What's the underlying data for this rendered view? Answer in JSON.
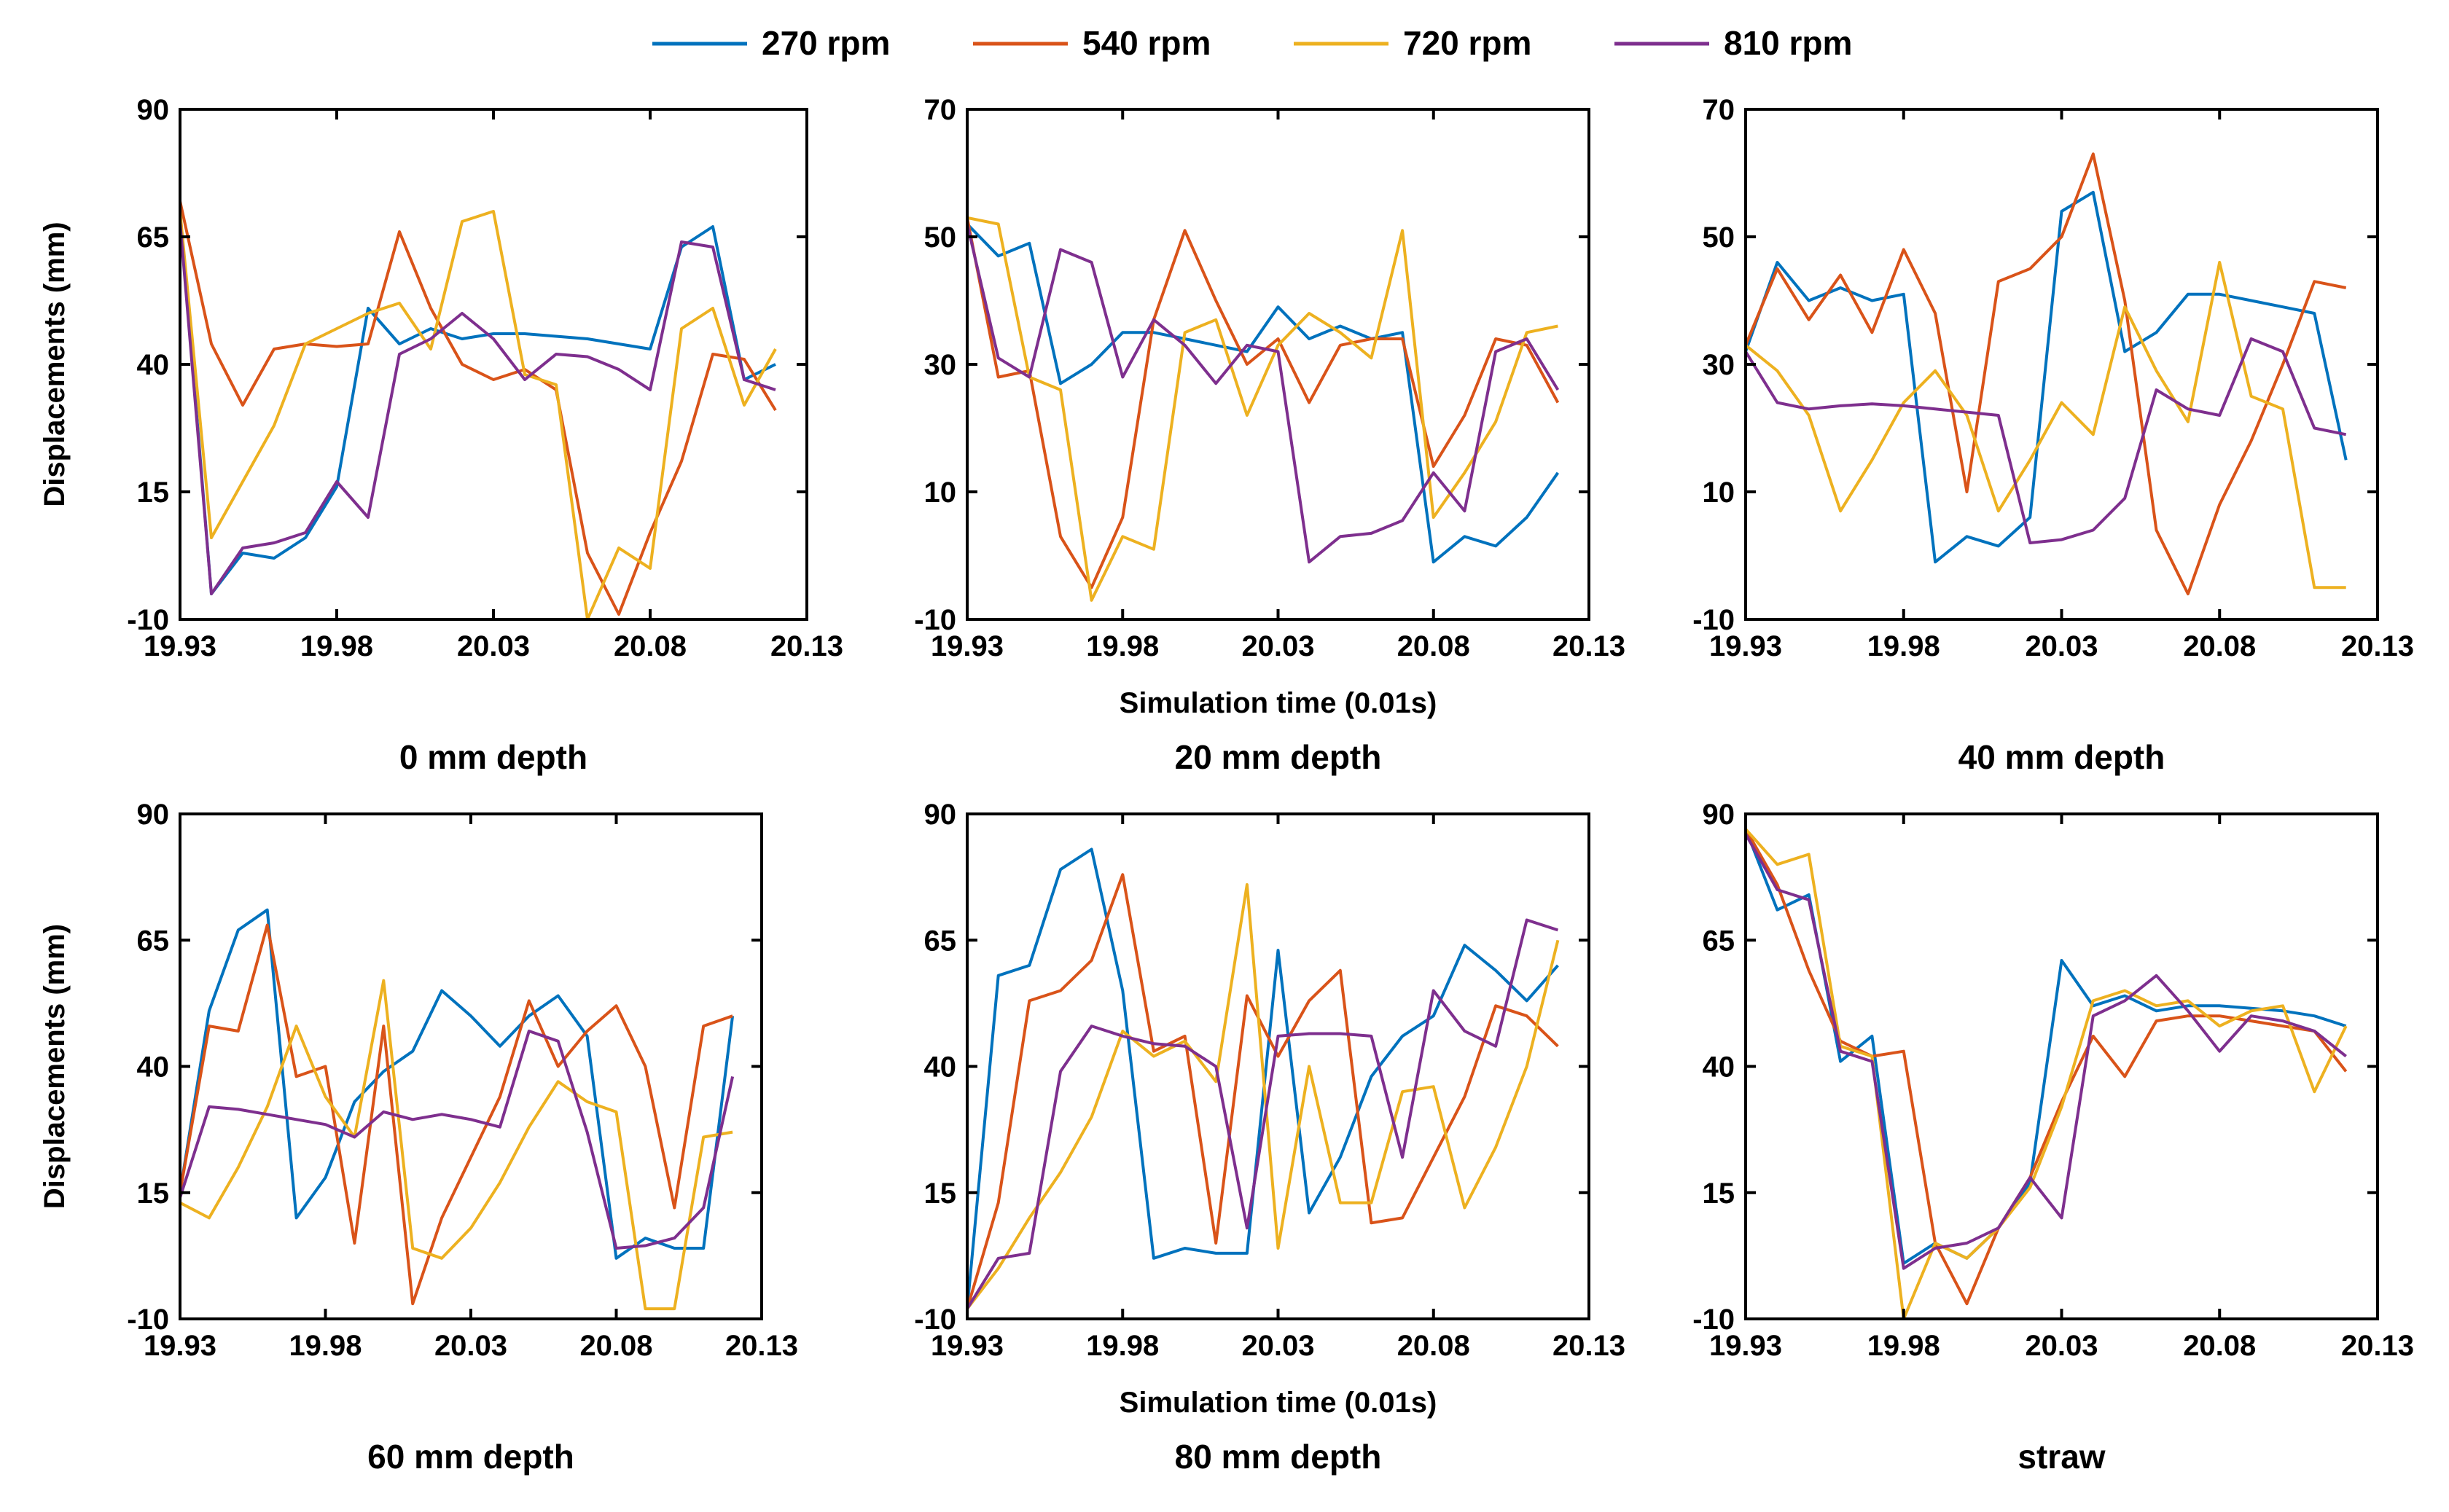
{
  "legend": [
    {
      "name": "270 rpm",
      "color": "#0072BD"
    },
    {
      "name": "540 rpm",
      "color": "#D95319"
    },
    {
      "name": "720 rpm",
      "color": "#EDB120"
    },
    {
      "name": "810 rpm",
      "color": "#7E2F8E"
    }
  ],
  "chart_data": [
    {
      "type": "line",
      "title": "0 mm depth",
      "xlabel": "",
      "ylabel": "Displacements (mm)",
      "xlim": [
        19.93,
        20.13
      ],
      "ylim": [
        -10,
        90
      ],
      "xticks": [
        "19.93",
        "19.98",
        "20.03",
        "20.08",
        "20.13"
      ],
      "yticks": [
        "-10",
        "15",
        "40",
        "65",
        "90"
      ],
      "x": [
        19.93,
        19.94,
        19.95,
        19.96,
        19.97,
        19.98,
        19.99,
        20.0,
        20.01,
        20.02,
        20.03,
        20.04,
        20.05,
        20.06,
        20.07,
        20.08,
        20.09,
        20.1,
        20.11,
        20.12
      ],
      "series": [
        {
          "name": "270 rpm",
          "values": [
            70,
            -5,
            3,
            2,
            6,
            16,
            51,
            44,
            47,
            45,
            46,
            46,
            45.5,
            45,
            44,
            43,
            63,
            67,
            37,
            40
          ]
        },
        {
          "name": "540 rpm",
          "values": [
            72,
            44,
            32,
            43,
            44,
            43.5,
            44,
            66,
            51,
            40,
            37,
            39,
            35,
            3,
            -9,
            7,
            21,
            42,
            41,
            31
          ]
        },
        {
          "name": "720 rpm",
          "values": [
            70,
            6,
            17,
            28,
            44,
            47,
            50,
            52,
            43,
            68,
            70,
            38,
            36,
            -10,
            4,
            0,
            47,
            51,
            32,
            43
          ]
        },
        {
          "name": "810 rpm",
          "values": [
            68,
            -5,
            4,
            5,
            7,
            17,
            10,
            42,
            45,
            50,
            45,
            37,
            42,
            41.5,
            39,
            35,
            64,
            63,
            37,
            35
          ]
        }
      ]
    },
    {
      "type": "line",
      "title": "20 mm depth",
      "xlabel": "Simulation time (0.01s)",
      "ylabel": "",
      "xlim": [
        19.93,
        20.13
      ],
      "ylim": [
        -10,
        70
      ],
      "xticks": [
        "19.93",
        "19.98",
        "20.03",
        "20.08",
        "20.13"
      ],
      "yticks": [
        "-10",
        "10",
        "30",
        "50",
        "70"
      ],
      "x": [
        19.93,
        19.94,
        19.95,
        19.96,
        19.97,
        19.98,
        19.99,
        20.0,
        20.01,
        20.02,
        20.03,
        20.04,
        20.05,
        20.06,
        20.07,
        20.08,
        20.09,
        20.1,
        20.11,
        20.12
      ],
      "series": [
        {
          "name": "270 rpm",
          "values": [
            52,
            47,
            49,
            27,
            30,
            35,
            35,
            34,
            33,
            32,
            39,
            34,
            36,
            34,
            35,
            -1,
            3,
            1.5,
            6,
            13
          ]
        },
        {
          "name": "540 rpm",
          "values": [
            53,
            28,
            29,
            3,
            -5,
            6,
            37,
            51,
            40,
            30,
            34,
            24,
            33,
            34,
            34,
            14,
            22,
            34,
            33,
            24
          ]
        },
        {
          "name": "720 rpm",
          "values": [
            53,
            52,
            28,
            26,
            -7,
            3,
            1,
            35,
            37,
            22,
            33,
            38,
            35,
            31,
            51,
            6,
            13,
            21,
            35,
            36
          ]
        },
        {
          "name": "810 rpm",
          "values": [
            52,
            31,
            28,
            48,
            46,
            28,
            37,
            33,
            27,
            33,
            32,
            -1,
            3,
            3.5,
            5.5,
            13,
            7,
            32,
            34,
            26
          ]
        }
      ]
    },
    {
      "type": "line",
      "title": "40 mm depth",
      "xlabel": "",
      "ylabel": "",
      "xlim": [
        19.93,
        20.13
      ],
      "ylim": [
        -10,
        70
      ],
      "xticks": [
        "19.93",
        "19.98",
        "20.03",
        "20.08",
        "20.13"
      ],
      "yticks": [
        "-10",
        "10",
        "30",
        "50",
        "70"
      ],
      "x": [
        19.93,
        19.94,
        19.95,
        19.96,
        19.97,
        19.98,
        19.99,
        20.0,
        20.01,
        20.02,
        20.03,
        20.04,
        20.05,
        20.06,
        20.07,
        20.08,
        20.09,
        20.1,
        20.11,
        20.12
      ],
      "series": [
        {
          "name": "270 rpm",
          "values": [
            32,
            46,
            40,
            42,
            40,
            41,
            -1,
            3,
            1.5,
            6,
            54,
            57,
            32,
            35,
            41,
            41,
            40,
            39,
            38,
            15
          ]
        },
        {
          "name": "540 rpm",
          "values": [
            33,
            45,
            37,
            44,
            35,
            48,
            38,
            10,
            43,
            45,
            50,
            63,
            40,
            4,
            -6,
            8,
            18,
            30,
            43,
            42
          ]
        },
        {
          "name": "720 rpm",
          "values": [
            33,
            29,
            22,
            7,
            15,
            24,
            29,
            22,
            7,
            15,
            24,
            19,
            39,
            29,
            21,
            46,
            25,
            23,
            -5,
            -5
          ]
        },
        {
          "name": "810 rpm",
          "values": [
            32,
            24,
            23,
            23.5,
            23.8,
            23.5,
            23,
            22.5,
            22,
            2,
            2.5,
            4,
            9,
            26,
            23,
            22,
            34,
            32,
            20,
            19
          ]
        }
      ]
    },
    {
      "type": "line",
      "title": "60 mm depth",
      "xlabel": "",
      "ylabel": "Displacements (mm)",
      "xlim": [
        19.93,
        20.13
      ],
      "ylim": [
        -10,
        90
      ],
      "xticks": [
        "19.93",
        "19.98",
        "20.03",
        "20.08",
        "20.13"
      ],
      "yticks": [
        "-10",
        "15",
        "40",
        "65",
        "90"
      ],
      "x": [
        19.93,
        19.94,
        19.95,
        19.96,
        19.97,
        19.98,
        19.99,
        20.0,
        20.01,
        20.02,
        20.03,
        20.04,
        20.05,
        20.06,
        20.07,
        20.08,
        20.09,
        20.1,
        20.11,
        20.12
      ],
      "series": [
        {
          "name": "270 rpm",
          "values": [
            15,
            51,
            67,
            71,
            10,
            18,
            33,
            39,
            43,
            55,
            50,
            44,
            50,
            54,
            46,
            2,
            6,
            4,
            4,
            50
          ]
        },
        {
          "name": "540 rpm",
          "values": [
            15,
            48,
            47,
            68,
            38,
            40,
            5,
            48,
            -7,
            10,
            22,
            34,
            53,
            40,
            47,
            52,
            40,
            12,
            48,
            50
          ]
        },
        {
          "name": "720 rpm",
          "values": [
            13,
            10,
            20,
            32,
            48,
            34,
            26,
            57,
            4,
            2,
            8,
            17,
            28,
            37,
            33,
            31,
            -8,
            -8,
            26,
            27
          ]
        },
        {
          "name": "810 rpm",
          "values": [
            14,
            32,
            31.5,
            30.5,
            29.5,
            28.5,
            26,
            31,
            29.5,
            30.5,
            29.5,
            28,
            47,
            45,
            27,
            4,
            4.5,
            6,
            12,
            38
          ]
        }
      ]
    },
    {
      "type": "line",
      "title": "80 mm depth",
      "xlabel": "Simulation time (0.01s)",
      "ylabel": "",
      "xlim": [
        19.93,
        20.13
      ],
      "ylim": [
        -10,
        90
      ],
      "xticks": [
        "19.93",
        "19.98",
        "20.03",
        "20.08",
        "20.13"
      ],
      "yticks": [
        "-10",
        "15",
        "40",
        "65",
        "90"
      ],
      "x": [
        19.93,
        19.94,
        19.95,
        19.96,
        19.97,
        19.98,
        19.99,
        20.0,
        20.01,
        20.02,
        20.03,
        20.04,
        20.05,
        20.06,
        20.07,
        20.08,
        20.09,
        20.1,
        20.11,
        20.12
      ],
      "series": [
        {
          "name": "270 rpm",
          "values": [
            -8,
            58,
            60,
            79,
            83,
            55,
            2,
            4,
            3,
            3,
            63,
            11,
            22,
            38,
            46,
            50,
            64,
            59,
            53,
            60
          ]
        },
        {
          "name": "540 rpm",
          "values": [
            -8,
            13,
            53,
            55,
            61,
            78,
            43,
            46,
            5,
            54,
            42,
            53,
            59,
            9,
            10,
            22,
            34,
            52,
            50,
            44
          ]
        },
        {
          "name": "720 rpm",
          "values": [
            -8,
            0,
            10,
            19,
            30,
            47,
            42,
            45,
            37,
            76,
            4,
            40,
            13,
            13,
            35,
            36,
            12,
            24,
            40,
            65
          ]
        },
        {
          "name": "810 rpm",
          "values": [
            -8,
            2,
            3,
            39,
            48,
            46,
            44.5,
            44,
            40,
            8,
            46,
            46.5,
            46.5,
            46,
            22,
            55,
            47,
            44,
            69,
            67
          ]
        }
      ]
    },
    {
      "type": "line",
      "title": "straw",
      "xlabel": "",
      "ylabel": "",
      "xlim": [
        19.93,
        20.13
      ],
      "ylim": [
        -10,
        90
      ],
      "xticks": [
        "19.93",
        "19.98",
        "20.03",
        "20.08",
        "20.13"
      ],
      "yticks": [
        "-10",
        "15",
        "40",
        "65",
        "90"
      ],
      "x": [
        19.93,
        19.94,
        19.95,
        19.96,
        19.97,
        19.98,
        19.99,
        20.0,
        20.01,
        20.02,
        20.03,
        20.04,
        20.05,
        20.06,
        20.07,
        20.08,
        20.09,
        20.1,
        20.11,
        20.12
      ],
      "series": [
        {
          "name": "270 rpm",
          "values": [
            87,
            71,
            74,
            41,
            46,
            1,
            5,
            2,
            8,
            17,
            61,
            52,
            54,
            51,
            52,
            52,
            51.5,
            51,
            50,
            48
          ]
        },
        {
          "name": "540 rpm",
          "values": [
            87,
            76,
            59,
            45,
            42,
            43,
            5,
            -7,
            8,
            18,
            33,
            46,
            38,
            49,
            50,
            50,
            49,
            48,
            47,
            39
          ]
        },
        {
          "name": "720 rpm",
          "values": [
            87,
            80,
            82,
            44,
            42,
            -10,
            5,
            2,
            8,
            16,
            32,
            53,
            55,
            52,
            53,
            48,
            51,
            52,
            35,
            48
          ]
        },
        {
          "name": "810 rpm",
          "values": [
            86,
            75,
            73,
            43,
            41,
            0,
            4,
            5,
            8,
            18,
            10,
            50,
            53,
            58,
            51,
            43,
            50,
            49,
            47,
            42
          ]
        }
      ]
    }
  ]
}
